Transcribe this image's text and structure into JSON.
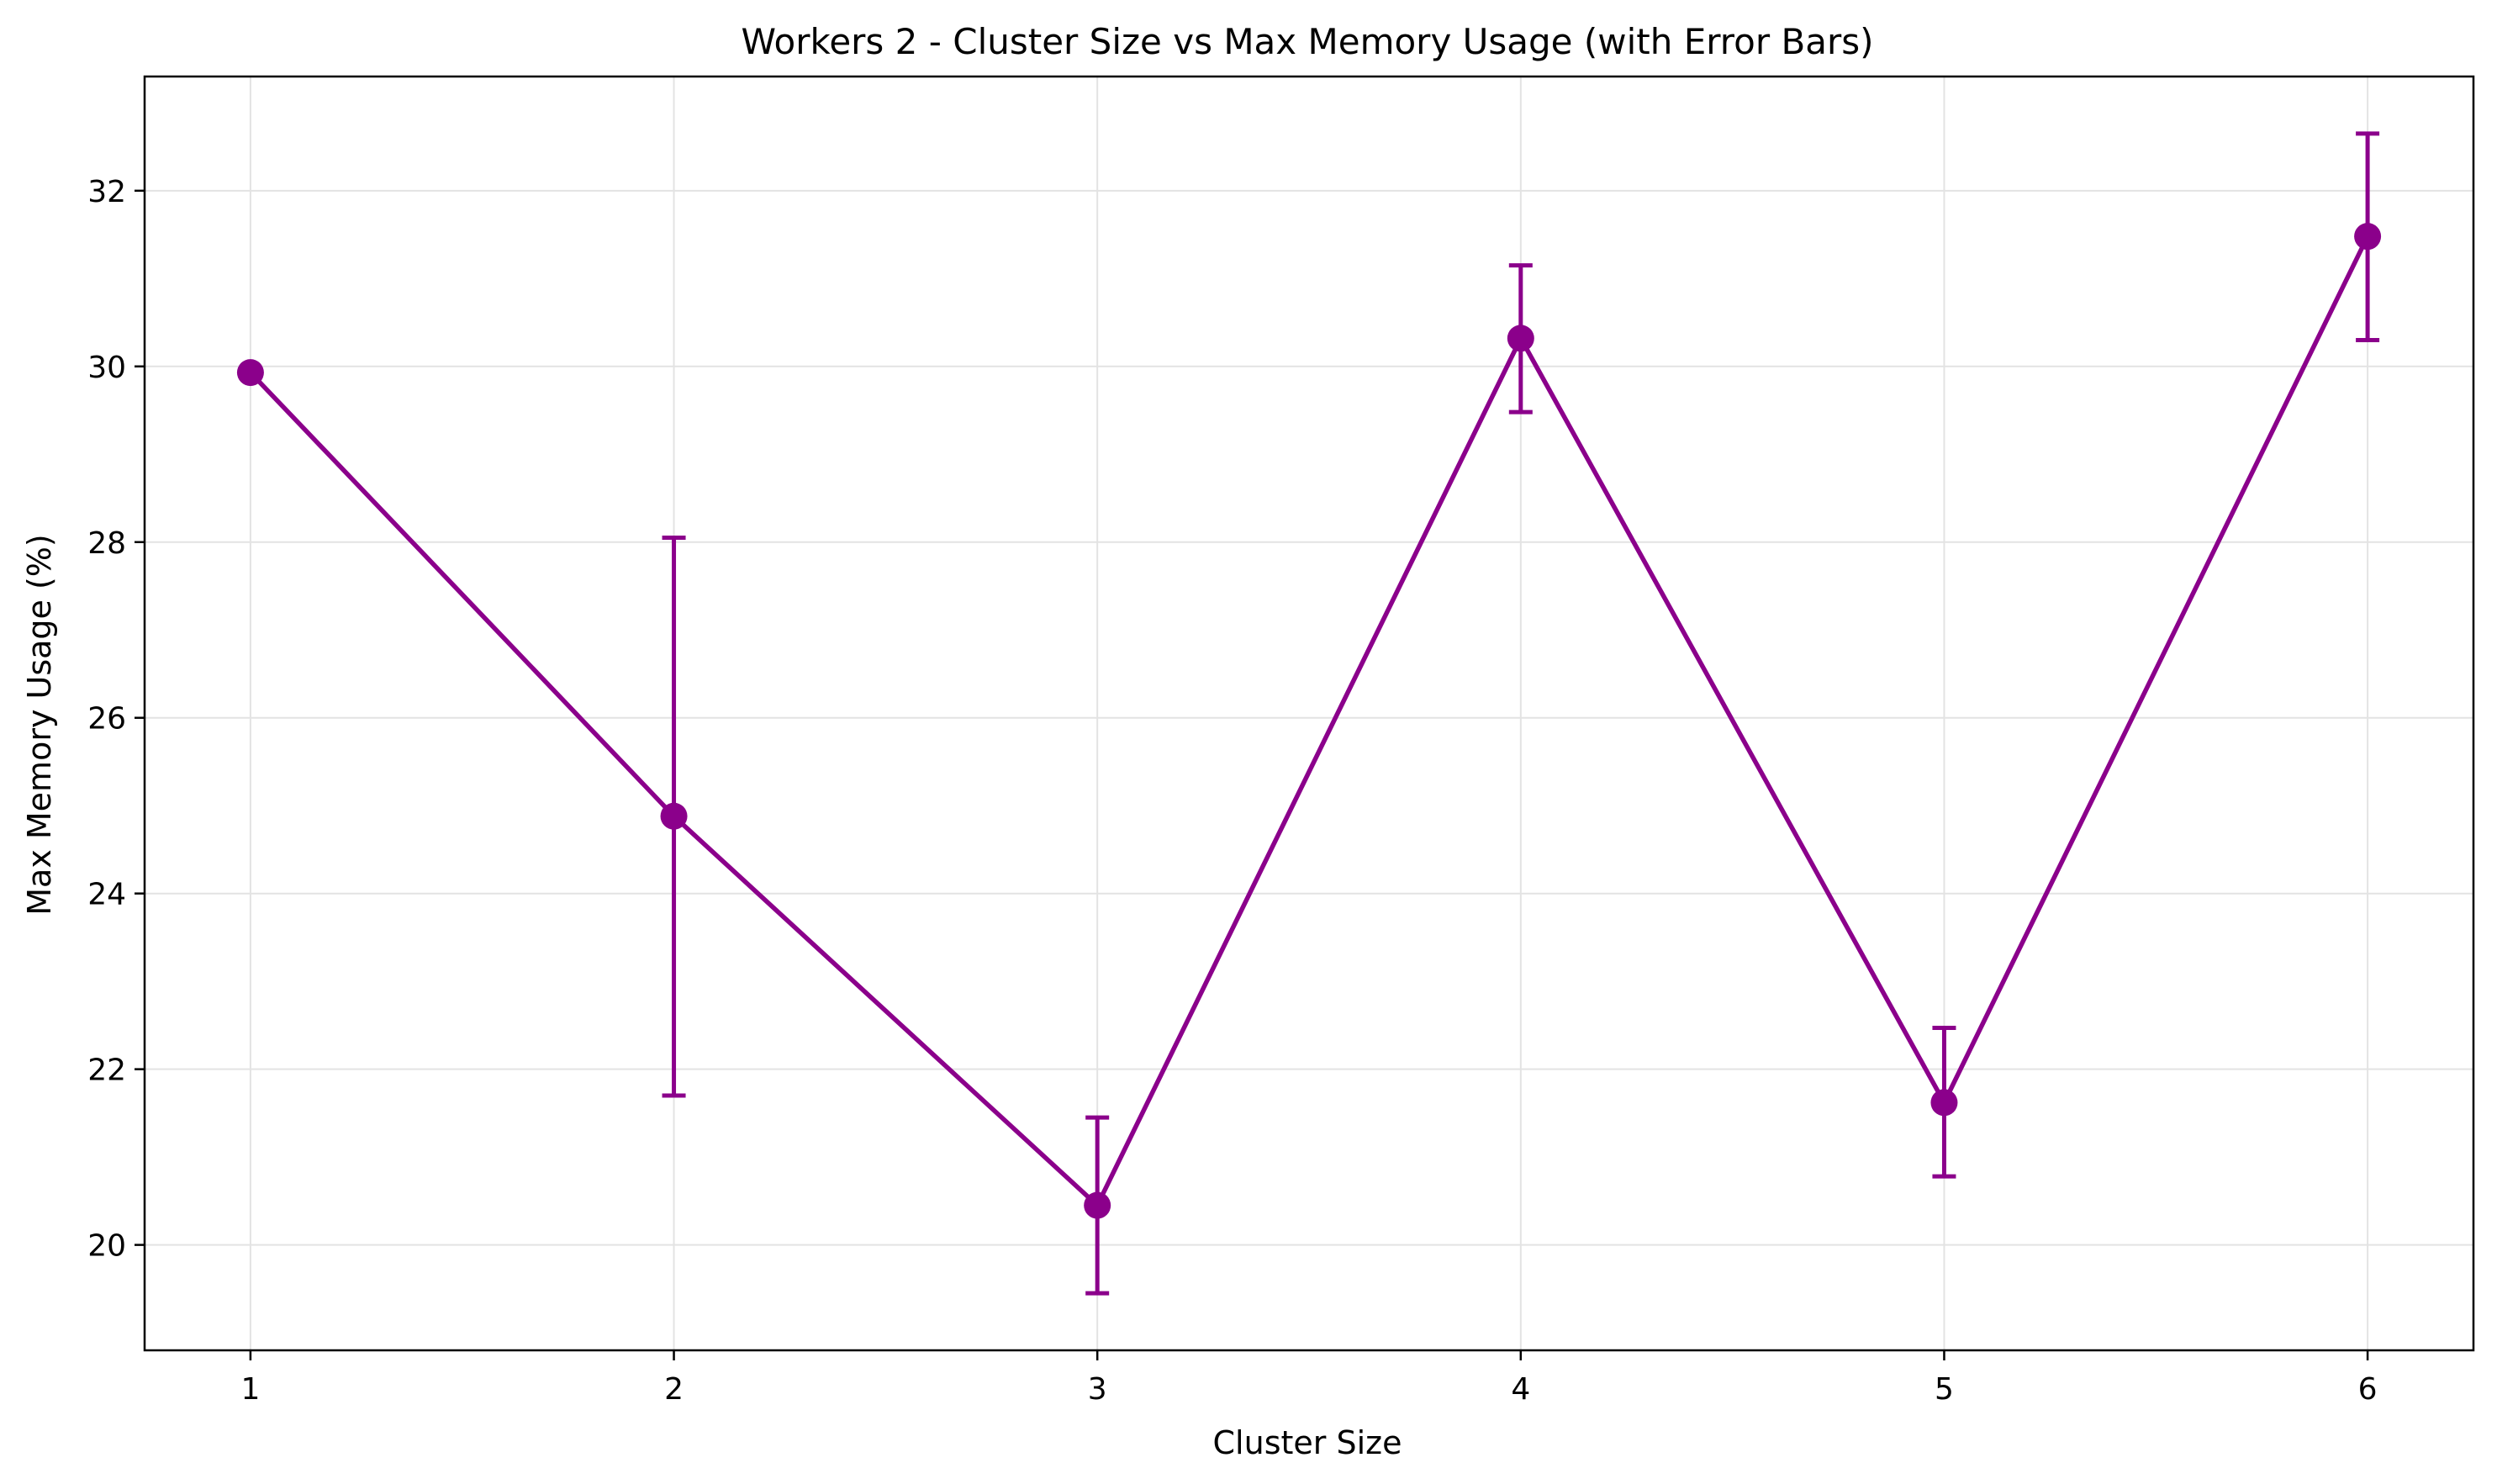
{
  "chart_data": {
    "type": "line",
    "title": "Workers 2 - Cluster Size vs Max Memory Usage (with Error Bars)",
    "xlabel": "Cluster Size",
    "ylabel": "Max Memory Usage (%)",
    "x": [
      1,
      2,
      3,
      4,
      5,
      6
    ],
    "xticks": [
      "1",
      "2",
      "3",
      "4",
      "5",
      "6"
    ],
    "yticks": [
      "20",
      "22",
      "24",
      "26",
      "28",
      "30",
      "32"
    ],
    "xlim": [
      0.75,
      6.25
    ],
    "ylim": [
      18.8,
      33.3
    ],
    "grid": true,
    "series": [
      {
        "values": [
          29.93,
          24.88,
          20.45,
          30.32,
          21.62,
          31.48
        ],
        "error_low": [
          29.9,
          21.7,
          19.45,
          29.48,
          20.78,
          30.3
        ],
        "error_high": [
          29.96,
          28.05,
          21.45,
          31.15,
          22.47,
          32.65
        ],
        "color": "#8B008B"
      }
    ]
  }
}
